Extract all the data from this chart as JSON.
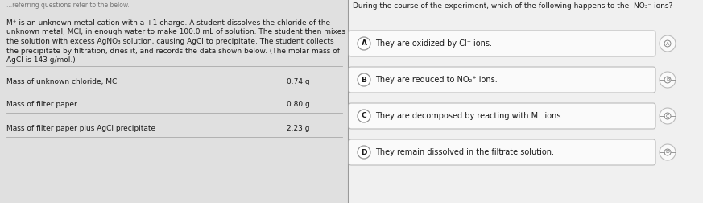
{
  "bg_color": "#f0f0f0",
  "left_bg": "#e0e0e0",
  "right_bg": "#f0f0f0",
  "title": "During the course of the experiment, which of the following happens to the  NO₃⁻ ions?",
  "left_top_text": "...referring questions refer to the below.",
  "left_para_lines": [
    "M⁺ is an unknown metal cation with a +1 charge. A student dissolves the chloride of the",
    "unknown metal, MCl, in enough water to make 100.0 mL of solution. The student then mixes",
    "the solution with excess AgNO₃ solution, causing AgCl to precipitate. The student collects",
    "the precipitate by filtration, dries it, and records the data shown below. (The molar mass of",
    "AgCl is 143 g/mol.)"
  ],
  "data_rows": [
    [
      "Mass of unknown chloride, MCl",
      "0.74 g"
    ],
    [
      "Mass of filter paper",
      "0.80 g"
    ],
    [
      "Mass of filter paper plus AgCl precipitate",
      "2.23 g"
    ]
  ],
  "options": [
    {
      "label": "A",
      "text": "They are oxidized by Cl⁻ ions."
    },
    {
      "label": "B",
      "text": "They are reduced to NO₂⁺ ions."
    },
    {
      "label": "C",
      "text": "They are decomposed by reacting with M⁺ ions."
    },
    {
      "label": "D",
      "text": "They remain dissolved in the filtrate solution."
    }
  ],
  "option_box_color": "#fafafa",
  "option_border_color": "#bbbbbb",
  "divider_color": "#999999",
  "text_color": "#1a1a1a",
  "label_circle_color": "#ffffff",
  "label_circle_edge": "#888888"
}
